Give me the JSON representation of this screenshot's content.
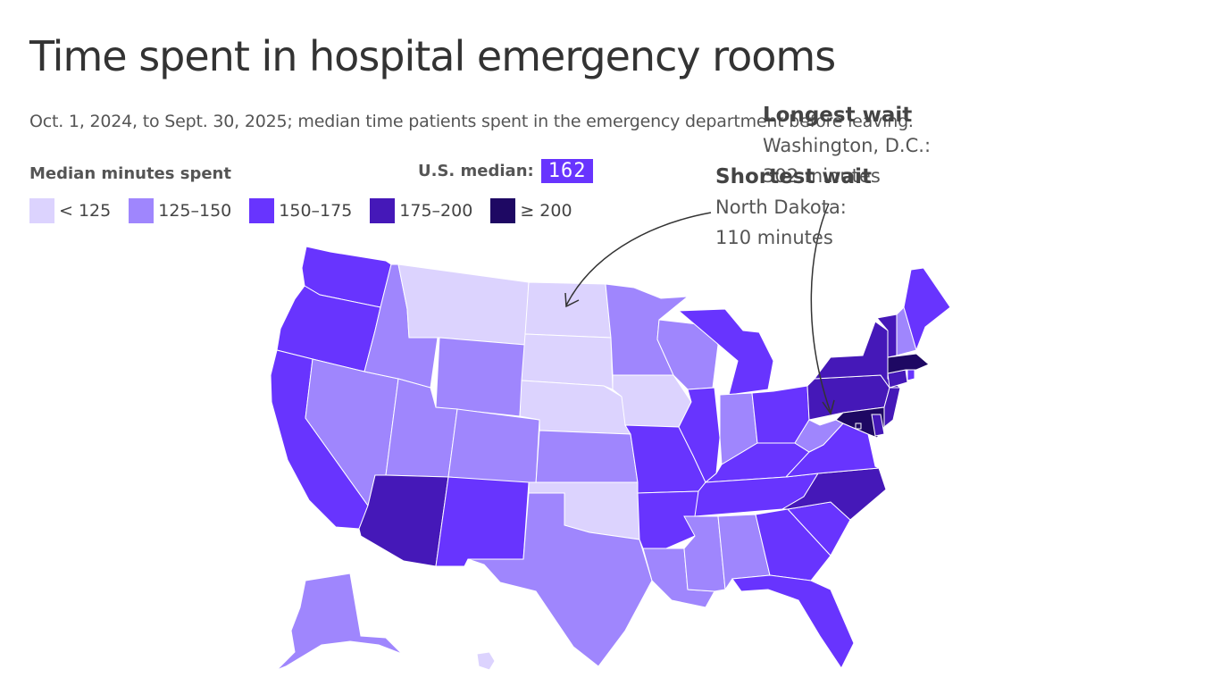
{
  "title": "Time spent in hospital emergency rooms",
  "subtitle": "Oct. 1, 2024, to Sept. 30, 2025; median time patients spent in the emergency department before leaving.",
  "legend": {
    "title": "Median minutes spent",
    "items": [
      {
        "label": "< 125",
        "color": "#dcd3fe"
      },
      {
        "label": "125–150",
        "color": "#9f86fd"
      },
      {
        "label": "150–175",
        "color": "#6834fe"
      },
      {
        "label": "175–200",
        "color": "#4518b8"
      },
      {
        "label": "≥ 200",
        "color": "#1e0863"
      }
    ]
  },
  "us_median": {
    "label": "U.S. median:",
    "value": "162"
  },
  "annotations": {
    "longest": {
      "title": "Longest wait",
      "line1": "Washington, D.C.:",
      "line2": "302 minutes"
    },
    "shortest": {
      "title": "Shortest wait",
      "line1": "North Dakota:",
      "line2": "110 minutes"
    }
  },
  "map_data": {
    "type": "choropleth",
    "bins": [
      "< 125",
      "125–150",
      "150–175",
      "175–200",
      "≥ 200"
    ],
    "states": {
      "WA": "150–175",
      "OR": "150–175",
      "CA": "150–175",
      "NV": "125–150",
      "ID": "125–150",
      "MT": "< 125",
      "WY": "125–150",
      "UT": "125–150",
      "AZ": "175–200",
      "NM": "150–175",
      "CO": "125–150",
      "ND": "< 125",
      "SD": "< 125",
      "NE": "< 125",
      "KS": "125–150",
      "OK": "< 125",
      "TX": "125–150",
      "MN": "125–150",
      "IA": "< 125",
      "MO": "150–175",
      "AR": "150–175",
      "LA": "125–150",
      "WI": "125–150",
      "IL": "150–175",
      "MI": "150–175",
      "IN": "125–150",
      "OH": "150–175",
      "KY": "150–175",
      "TN": "150–175",
      "MS": "125–150",
      "AL": "125–150",
      "GA": "150–175",
      "FL": "150–175",
      "SC": "150–175",
      "NC": "175–200",
      "VA": "150–175",
      "WV": "125–150",
      "PA": "175–200",
      "NY": "175–200",
      "NJ": "175–200",
      "DE": "175–200",
      "MD": "≥ 200",
      "DC": "≥ 200",
      "CT": "175–200",
      "RI": "150–175",
      "MA": "≥ 200",
      "VT": "175–200",
      "NH": "125–150",
      "ME": "150–175",
      "AK": "125–150",
      "HI": "< 125"
    }
  }
}
